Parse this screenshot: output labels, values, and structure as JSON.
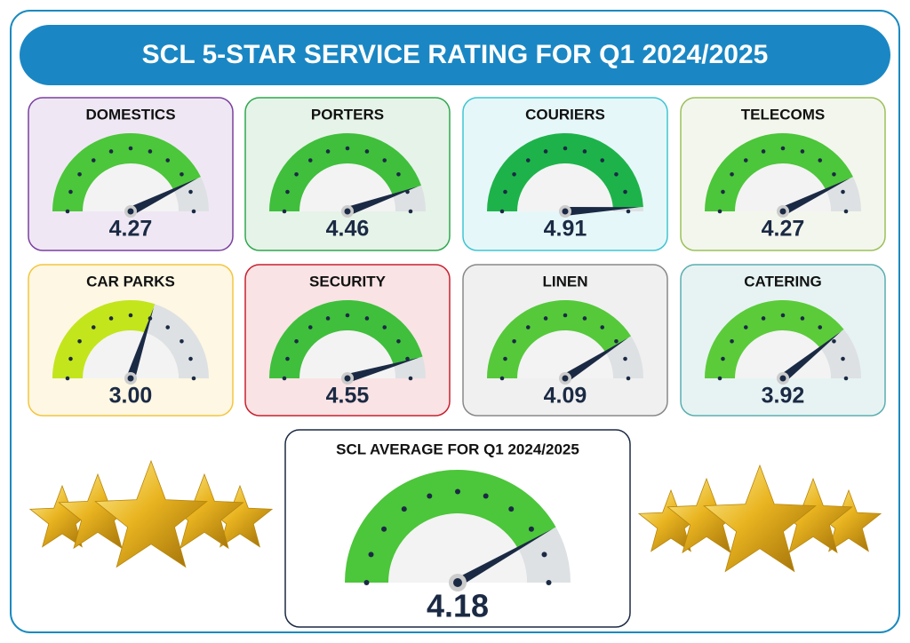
{
  "title": "SCL 5-STAR SERVICE RATING FOR Q1 2024/2025",
  "chart_data": [
    {
      "type": "gauge",
      "title": "DOMESTICS",
      "values": [
        4.27
      ],
      "ylim": [
        0,
        5
      ],
      "color": "#4cc63a"
    },
    {
      "type": "gauge",
      "title": "PORTERS",
      "values": [
        4.46
      ],
      "ylim": [
        0,
        5
      ],
      "color": "#3fbf3c"
    },
    {
      "type": "gauge",
      "title": "COURIERS",
      "values": [
        4.91
      ],
      "ylim": [
        0,
        5
      ],
      "color": "#1db34a"
    },
    {
      "type": "gauge",
      "title": "TELECOMS",
      "values": [
        4.27
      ],
      "ylim": [
        0,
        5
      ],
      "color": "#4cc63a"
    },
    {
      "type": "gauge",
      "title": "CAR PARKS",
      "values": [
        3
      ],
      "value_labels": [
        "3.00"
      ],
      "ylim": [
        0,
        5
      ],
      "color": "#c3e51c"
    },
    {
      "type": "gauge",
      "title": "SECURITY",
      "values": [
        4.55
      ],
      "ylim": [
        0,
        5
      ],
      "color": "#3fbf3c"
    },
    {
      "type": "gauge",
      "title": "LINEN",
      "values": [
        4.09
      ],
      "ylim": [
        0,
        5
      ],
      "color": "#55c93a"
    },
    {
      "type": "gauge",
      "title": "CATERING",
      "values": [
        3.92
      ],
      "ylim": [
        0,
        5
      ],
      "color": "#5bcb3a"
    },
    {
      "type": "gauge",
      "title": "SCL AVERAGE FOR Q1 2024/2025",
      "values": [
        4.18
      ],
      "ylim": [
        0,
        5
      ],
      "color": "#4cc63a"
    }
  ]
}
